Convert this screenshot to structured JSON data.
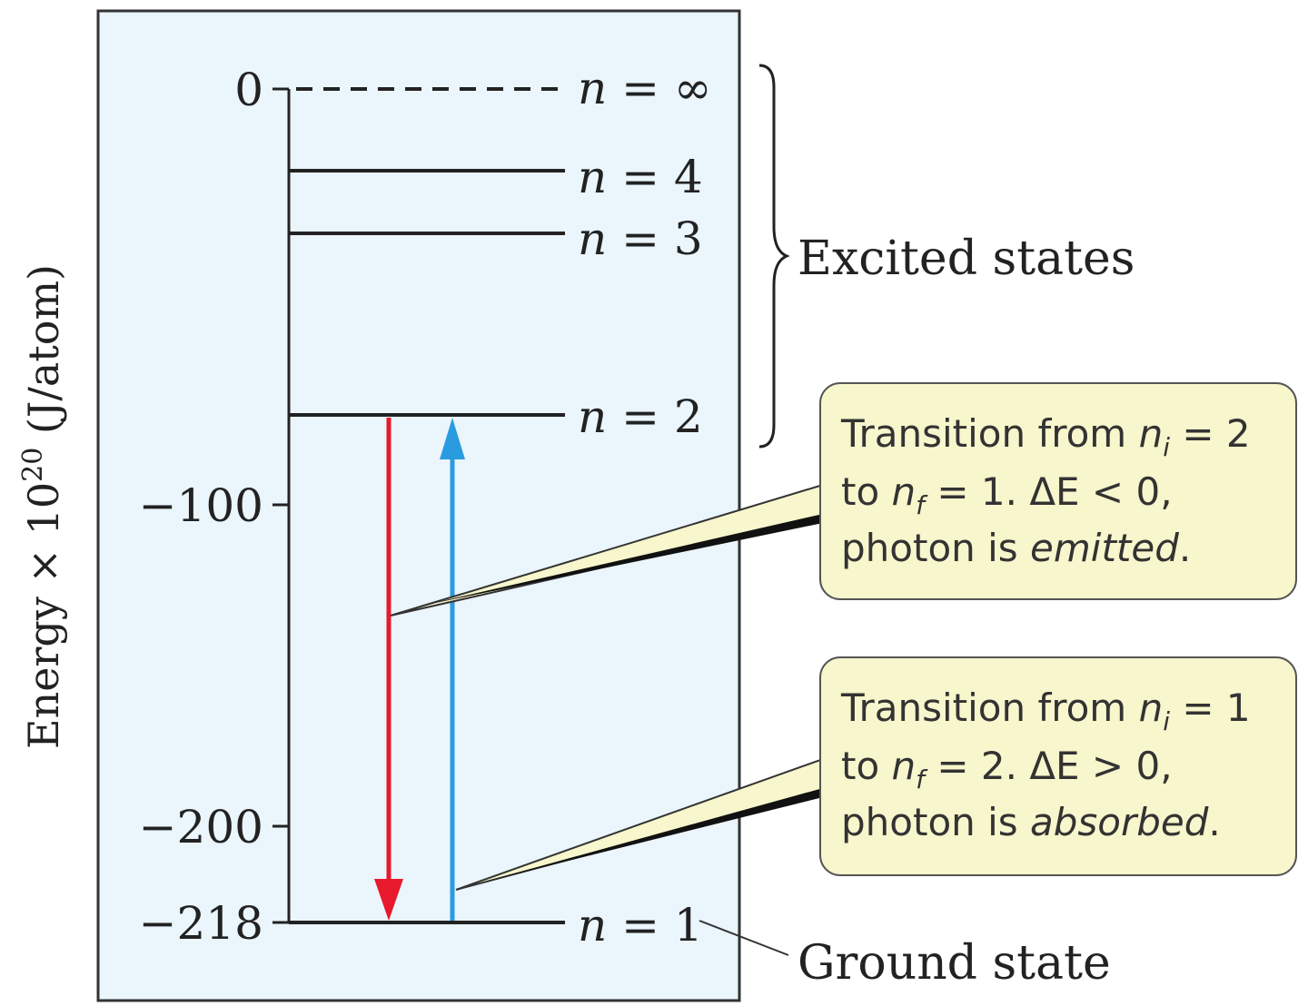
{
  "axis": {
    "label_prefix": "Energy × 10",
    "label_exponent": "20",
    "label_suffix": " (J/atom)",
    "ticks": [
      "0",
      "−100",
      "−200",
      "−218"
    ]
  },
  "levels": {
    "n_inf": {
      "n": "n",
      "eq": " = ∞"
    },
    "n4": {
      "n": "n",
      "eq": " = 4"
    },
    "n3": {
      "n": "n",
      "eq": " = 3"
    },
    "n2": {
      "n": "n",
      "eq": " = 2"
    },
    "n1": {
      "n": "n",
      "eq": " = 1"
    }
  },
  "labels": {
    "excited_states": "Excited states",
    "ground_state": "Ground state"
  },
  "callouts": {
    "emission": {
      "l1a": "Transition from ",
      "l1n": "n",
      "l1sub": "i",
      "l1b": " = 2",
      "l2a": "to ",
      "l2n": "n",
      "l2sub": "f",
      "l2b": " = 1. ΔE < 0,",
      "l3a": "photon is ",
      "l3em": "emitted",
      "l3b": "."
    },
    "absorption": {
      "l1a": "Transition from ",
      "l1n": "n",
      "l1sub": "i",
      "l1b": " = 1",
      "l2a": "to ",
      "l2n": "n",
      "l2sub": "f",
      "l2b": " = 2. ΔE > 0,",
      "l3a": "photon is ",
      "l3em": "absorbed",
      "l3b": "."
    }
  },
  "colors": {
    "panel": "#eaf5fc",
    "callout": "#f7f6cc",
    "emission_arrow": "#e8192c",
    "absorption_arrow": "#2b9be0"
  }
}
